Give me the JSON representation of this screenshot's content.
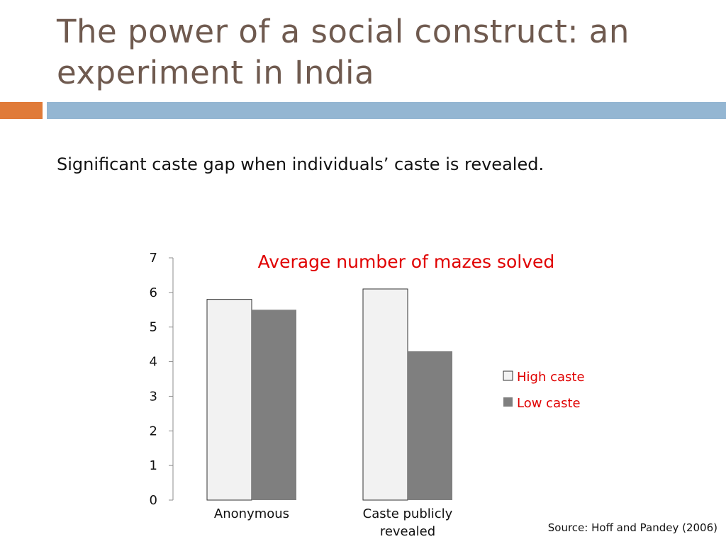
{
  "slide": {
    "title": "The power of a social construct: an experiment in India",
    "subtitle": "Significant caste gap when individuals’ caste is revealed.",
    "source": "Source:  Hoff and Pandey (2006)",
    "accent_orange": "#e07b39",
    "accent_blue": "#94b6d2"
  },
  "chart_data": {
    "type": "bar",
    "title": "Average number of mazes solved",
    "categories": [
      "Anonymous",
      "Caste publicly revealed"
    ],
    "series": [
      {
        "name": "High caste",
        "values": [
          5.8,
          6.1
        ],
        "color": "#f2f2f2"
      },
      {
        "name": "Low caste",
        "values": [
          5.5,
          4.3
        ],
        "color": "#7f7f7f"
      }
    ],
    "ylim": [
      0,
      7
    ],
    "yticks": [
      0,
      1,
      2,
      3,
      4,
      5,
      6,
      7
    ],
    "xlabel": "",
    "ylabel": "",
    "grid": false,
    "legend_position": "right",
    "title_color": "#e00000",
    "legend_text_color": "#e00000"
  }
}
